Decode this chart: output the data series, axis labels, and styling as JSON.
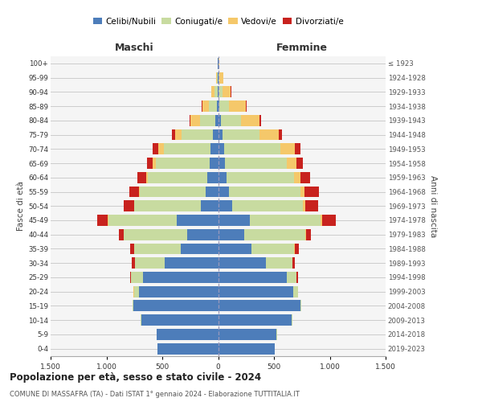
{
  "age_groups": [
    "0-4",
    "5-9",
    "10-14",
    "15-19",
    "20-24",
    "25-29",
    "30-34",
    "35-39",
    "40-44",
    "45-49",
    "50-54",
    "55-59",
    "60-64",
    "65-69",
    "70-74",
    "75-79",
    "80-84",
    "85-89",
    "90-94",
    "95-99",
    "100+"
  ],
  "birth_years": [
    "2019-2023",
    "2014-2018",
    "2009-2013",
    "2004-2008",
    "1999-2003",
    "1994-1998",
    "1989-1993",
    "1984-1988",
    "1979-1983",
    "1974-1978",
    "1969-1973",
    "1964-1968",
    "1959-1963",
    "1954-1958",
    "1949-1953",
    "1944-1948",
    "1939-1943",
    "1934-1938",
    "1929-1933",
    "1924-1928",
    "≤ 1923"
  ],
  "colors": {
    "celibi": "#4d7dba",
    "coniugati": "#c8dba0",
    "vedovi": "#f5c86a",
    "divorziati": "#c8221e"
  },
  "maschi": {
    "celibi": [
      540,
      550,
      690,
      760,
      710,
      670,
      475,
      335,
      280,
      370,
      155,
      115,
      95,
      75,
      65,
      45,
      22,
      12,
      6,
      3,
      2
    ],
    "coniugati": [
      1,
      1,
      2,
      8,
      45,
      108,
      268,
      415,
      565,
      615,
      595,
      585,
      535,
      480,
      420,
      280,
      140,
      72,
      25,
      7,
      2
    ],
    "vedovi": [
      0,
      0,
      0,
      0,
      1,
      1,
      2,
      2,
      2,
      3,
      5,
      10,
      15,
      30,
      50,
      60,
      85,
      55,
      28,
      10,
      2
    ],
    "divorziati": [
      0,
      0,
      0,
      1,
      3,
      8,
      28,
      35,
      38,
      95,
      88,
      88,
      75,
      55,
      50,
      32,
      10,
      6,
      3,
      1,
      0
    ]
  },
  "femmine": {
    "celibi": [
      505,
      525,
      660,
      735,
      675,
      615,
      425,
      295,
      235,
      285,
      125,
      95,
      75,
      60,
      55,
      42,
      22,
      12,
      6,
      3,
      2
    ],
    "coniugati": [
      1,
      1,
      2,
      7,
      38,
      88,
      238,
      385,
      545,
      635,
      635,
      645,
      605,
      555,
      505,
      325,
      185,
      88,
      32,
      8,
      2
    ],
    "vedovi": [
      0,
      0,
      0,
      0,
      1,
      2,
      3,
      4,
      5,
      12,
      20,
      35,
      60,
      90,
      130,
      175,
      165,
      145,
      75,
      38,
      5
    ],
    "divorziati": [
      0,
      0,
      0,
      1,
      3,
      10,
      20,
      40,
      48,
      125,
      115,
      125,
      85,
      55,
      45,
      30,
      12,
      8,
      3,
      1,
      0
    ]
  },
  "title": "Popolazione per età, sesso e stato civile - 2024",
  "subtitle": "COMUNE DI MASSAFRA (TA) - Dati ISTAT 1° gennaio 2024 - Elaborazione TUTTITALIA.IT",
  "xlabel_maschi": "Maschi",
  "xlabel_femmine": "Femmine",
  "ylabel": "Fasce di età",
  "ylabel_right": "Anni di nascita",
  "xlim": 1500,
  "bg_color": "#f5f5f5",
  "grid_color": "#cccccc"
}
